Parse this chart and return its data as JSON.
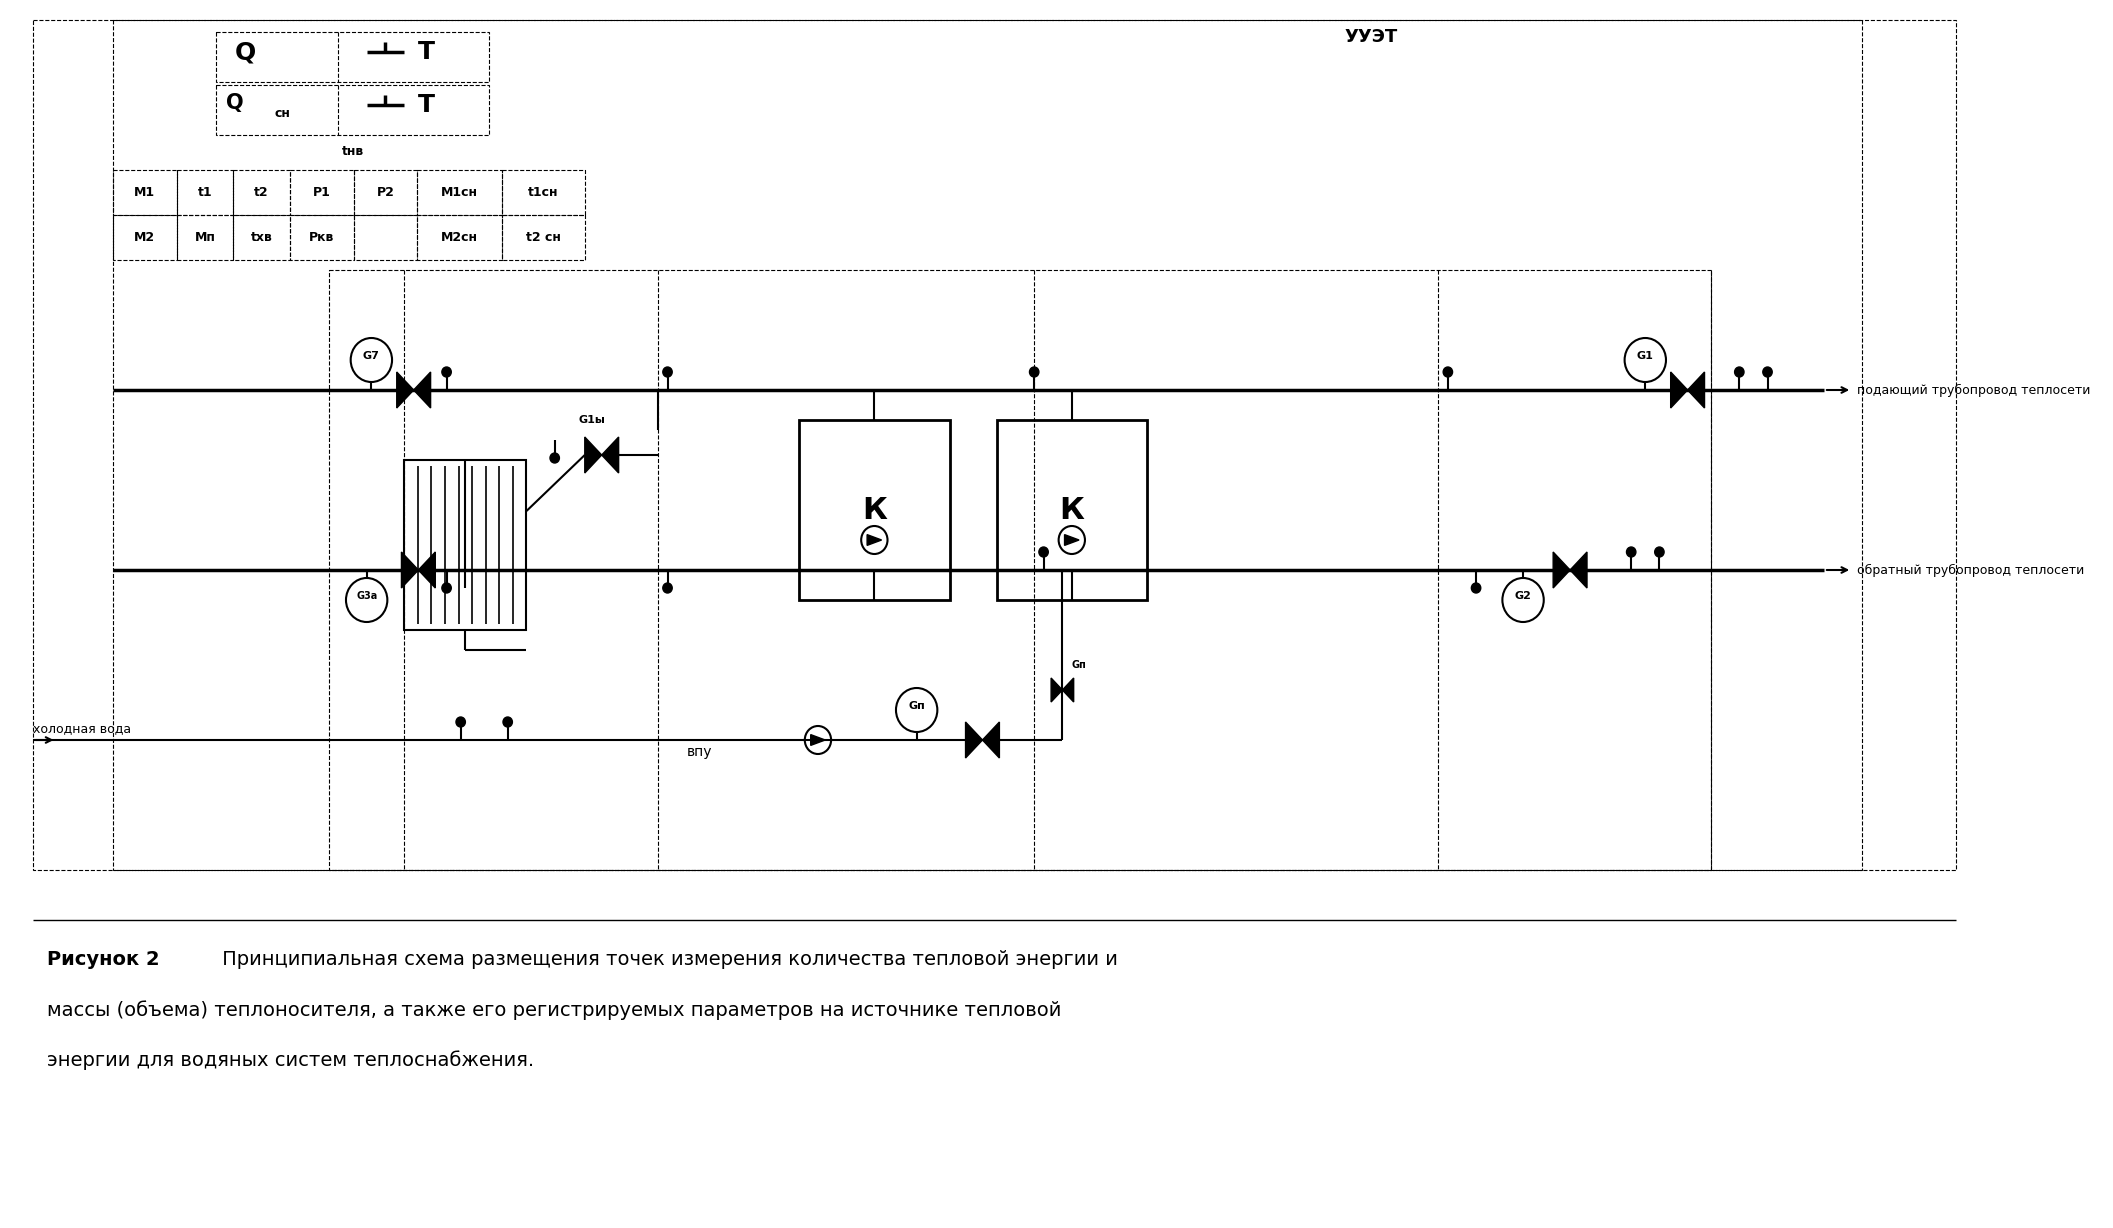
{
  "bg_color": "#ffffff",
  "title_bold": "Рисунок 2",
  "title_normal": " Принципиальная схема размещения точек измерения количества тепловой энергии и массы (объема) теплоносителя, а также его регистрируемых параметров на источнике тепловой\nэнергии для водяных систем теплоснабжения.",
  "label_supply": "подающий трубопровод теплосети",
  "label_return": "обратный трубопровод теплосети",
  "label_cold_water": "холодная вода",
  "label_vpu": "впу",
  "label_uuet": "УУЭТ",
  "label_tnv": "tнв",
  "label_Q": "Q",
  "label_T": "T",
  "label_Qcn": "Q",
  "label_cn": "сн",
  "label_M1": "M1",
  "label_t1": "t1",
  "label_t2": "t2",
  "label_P1": "P1",
  "label_P2": "P2",
  "label_M1cn": "M1сн",
  "label_t1cn": "t1сн",
  "label_M2": "M2",
  "label_Mn": "Мп",
  "label_txv": "tхв",
  "label_Pxv": "Ркв",
  "label_M2cn": "M2сн",
  "label_t2cn": "t2 сн",
  "label_G7": "G7",
  "label_G1": "G1",
  "label_G3a": "G3а",
  "label_G2": "G2",
  "label_G1v": "G1ы",
  "label_Gn": "Gп",
  "label_K": "К"
}
